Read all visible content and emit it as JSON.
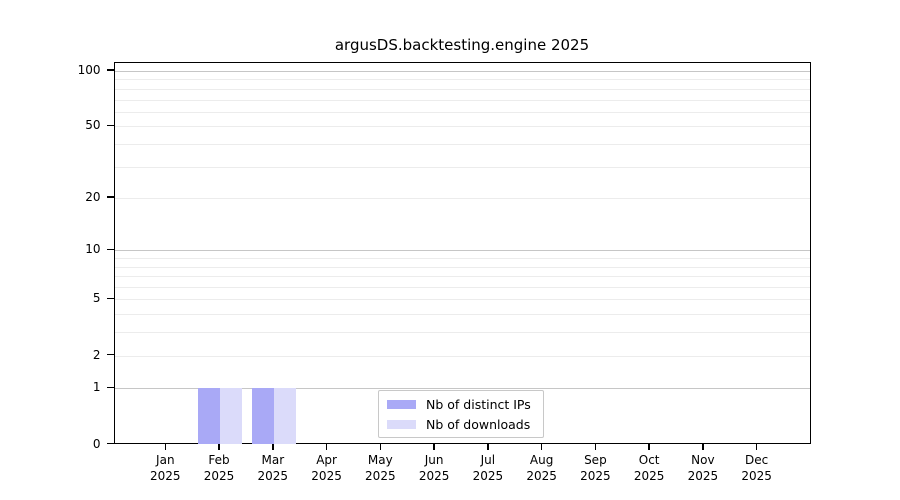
{
  "chart_data": {
    "type": "bar",
    "title": "argusDS.backtesting.engine 2025",
    "x": {
      "months": [
        "Jan",
        "Feb",
        "Mar",
        "Apr",
        "May",
        "Jun",
        "Jul",
        "Aug",
        "Sep",
        "Oct",
        "Nov",
        "Dec"
      ],
      "year": "2025"
    },
    "series": [
      {
        "name": "Nb of distinct IPs",
        "color": "#a9a9f6",
        "values": [
          0,
          1,
          1,
          0,
          0,
          0,
          0,
          0,
          0,
          0,
          0,
          0
        ]
      },
      {
        "name": "Nb of downloads",
        "color": "#dbdbfa",
        "values": [
          0,
          1,
          1,
          0,
          0,
          0,
          0,
          0,
          0,
          0,
          0,
          0
        ]
      }
    ],
    "y_axis": {
      "scale": "log1p",
      "ticks": [
        0,
        1,
        2,
        5,
        10,
        20,
        50,
        100
      ],
      "minor_gridlines": [
        2,
        3,
        4,
        5,
        6,
        7,
        8,
        9,
        20,
        30,
        40,
        50,
        60,
        70,
        80,
        90
      ],
      "major_gridlines": [
        1,
        10,
        100
      ],
      "ylim": [
        0,
        110
      ]
    },
    "legend": {
      "position": "bottom-center"
    },
    "colors": {
      "minor_grid": "#ececec",
      "major_grid": "#c6c6c6",
      "axis": "#000000",
      "text": "#000000",
      "background": "#ffffff"
    }
  }
}
